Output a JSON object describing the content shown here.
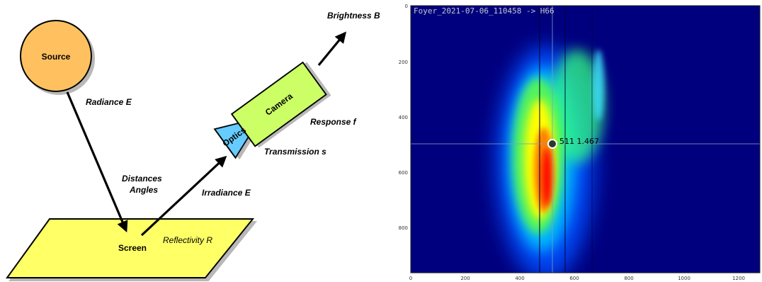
{
  "diagram": {
    "source_label": "Source",
    "radiance_label": "Radiance E",
    "distances_label": "Distances",
    "angles_label": "Angles",
    "screen_label": "Screen",
    "reflectivity_label": "Reflectivity R",
    "irradiance_label": "Irradiance E",
    "optics_label": "Optics",
    "transmission_label": "Transmission s",
    "camera_label": "Camera",
    "response_label": "Response f",
    "brightness_label": "Brightness B",
    "colors": {
      "source_fill": "#ffc060",
      "screen_fill": "#ffff66",
      "camera_fill": "#ccff66",
      "optics_fill": "#66ccff"
    }
  },
  "image_panel": {
    "title": "Foyer_2021-07-06_110458 -> H66",
    "marker_text": "511 1.467",
    "colormap": "jet",
    "background_color": "#00007f",
    "x_ticks": [
      "0",
      "200",
      "400",
      "600",
      "800",
      "1000",
      "1200"
    ],
    "y_ticks": [
      "0",
      "200",
      "400",
      "600",
      "800"
    ]
  }
}
